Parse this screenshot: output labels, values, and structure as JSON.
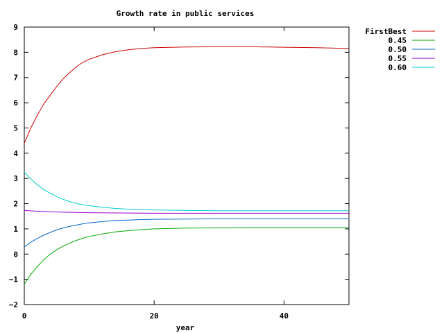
{
  "chart_data": {
    "type": "line",
    "title": "Growth rate in public services",
    "xlabel": "year",
    "ylabel": "",
    "xlim": [
      0,
      50
    ],
    "ylim": [
      -2,
      9
    ],
    "xticks": [
      0,
      20,
      40
    ],
    "xtick_labels": [
      "0",
      "20",
      "40"
    ],
    "yticks": [
      -2,
      -1,
      0,
      1,
      2,
      3,
      4,
      5,
      6,
      7,
      8,
      9
    ],
    "ytick_labels": [
      "−2",
      "−1",
      "0",
      "1",
      "2",
      "3",
      "4",
      "5",
      "6",
      "7",
      "8",
      "9"
    ],
    "grid": false,
    "legend_position": "top-right (outside plot)",
    "series": [
      {
        "name": "FirstBest",
        "color": "#cc0000",
        "x": [
          0,
          1,
          2,
          3,
          4,
          5,
          6,
          7,
          8,
          9,
          10,
          12,
          14,
          16,
          18,
          20,
          25,
          30,
          35,
          40,
          45,
          50
        ],
        "y": [
          4.4,
          5.0,
          5.5,
          5.95,
          6.3,
          6.65,
          6.95,
          7.2,
          7.42,
          7.6,
          7.72,
          7.9,
          8.02,
          8.1,
          8.15,
          8.18,
          8.21,
          8.22,
          8.22,
          8.2,
          8.18,
          8.15
        ]
      },
      {
        "name": "0.45",
        "color": "#00aa00",
        "x": [
          0,
          1,
          2,
          3,
          4,
          5,
          6,
          7,
          8,
          9,
          10,
          12,
          14,
          16,
          18,
          20,
          25,
          30,
          35,
          40,
          45,
          50
        ],
        "y": [
          -1.2,
          -0.8,
          -0.5,
          -0.22,
          0.0,
          0.17,
          0.32,
          0.44,
          0.54,
          0.63,
          0.7,
          0.8,
          0.88,
          0.93,
          0.97,
          1.0,
          1.03,
          1.04,
          1.05,
          1.05,
          1.05,
          1.05
        ]
      },
      {
        "name": "0.50",
        "color": "#0066cc",
        "x": [
          0,
          1,
          2,
          3,
          4,
          5,
          6,
          7,
          8,
          9,
          10,
          12,
          14,
          16,
          18,
          20,
          25,
          30,
          35,
          40,
          45,
          50
        ],
        "y": [
          0.28,
          0.47,
          0.62,
          0.75,
          0.86,
          0.96,
          1.04,
          1.1,
          1.15,
          1.2,
          1.24,
          1.29,
          1.33,
          1.35,
          1.37,
          1.38,
          1.39,
          1.4,
          1.4,
          1.4,
          1.4,
          1.4
        ]
      },
      {
        "name": "0.55",
        "color": "#9900cc",
        "x": [
          0,
          2,
          4,
          6,
          8,
          10,
          15,
          20,
          30,
          40,
          50
        ],
        "y": [
          1.73,
          1.7,
          1.68,
          1.66,
          1.65,
          1.64,
          1.63,
          1.62,
          1.62,
          1.62,
          1.62
        ]
      },
      {
        "name": "0.60",
        "color": "#00cccc",
        "x": [
          0,
          1,
          2,
          3,
          4,
          5,
          6,
          7,
          8,
          9,
          10,
          12,
          14,
          16,
          18,
          20,
          25,
          30,
          35,
          40,
          45,
          50
        ],
        "y": [
          3.25,
          2.98,
          2.75,
          2.56,
          2.41,
          2.28,
          2.17,
          2.08,
          2.01,
          1.96,
          1.92,
          1.86,
          1.81,
          1.78,
          1.76,
          1.75,
          1.73,
          1.72,
          1.72,
          1.72,
          1.72,
          1.72
        ]
      }
    ]
  }
}
